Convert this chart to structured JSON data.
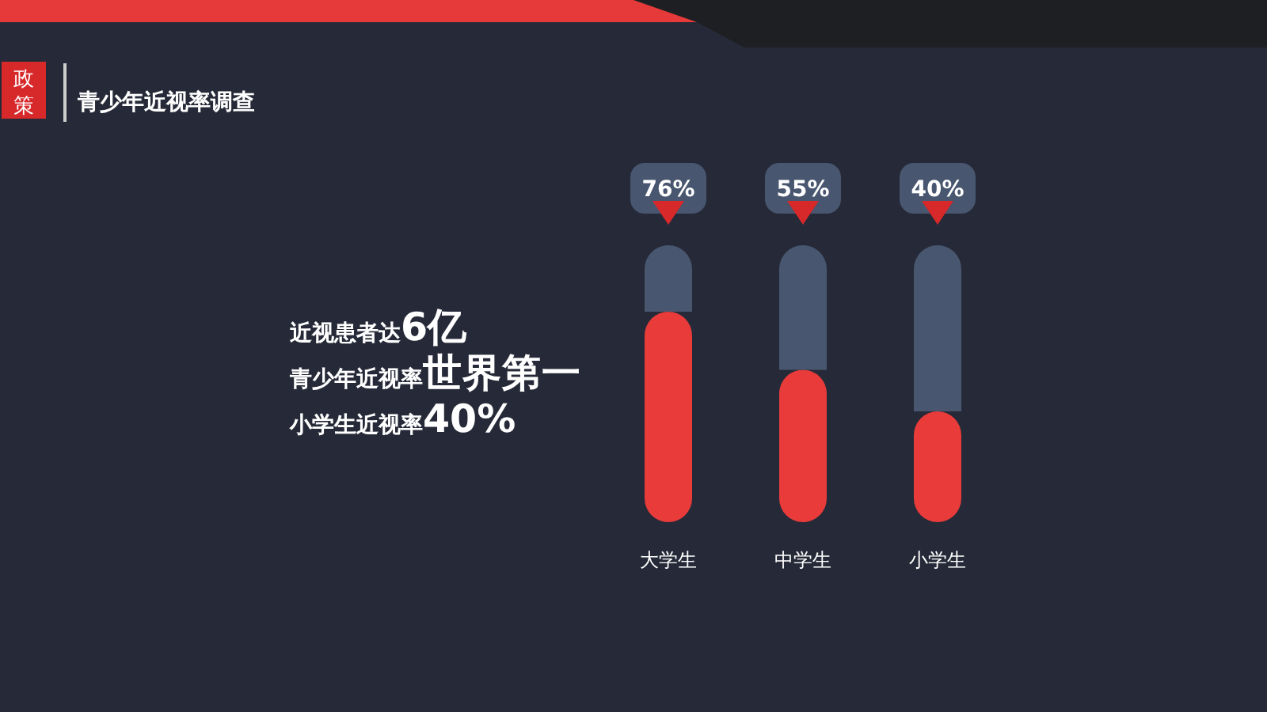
{
  "chart_data": {
    "type": "bar",
    "title": "青少年近视率调查",
    "categories": [
      "大学生",
      "中学生",
      "小学生"
    ],
    "stacked": true,
    "series": [
      {
        "color": "#e83b3a",
        "values": [
          76,
          55,
          40
        ],
        "value_labels": [
          "76%",
          "55%",
          "40%"
        ]
      },
      {
        "color": "#48566f",
        "values": [
          24,
          45,
          60
        ]
      }
    ],
    "ylim": [
      0,
      100
    ],
    "annotations": [
      "政策",
      "近视患者达**6亿**",
      "青少年近视率**世界第一**",
      "小学生近视率**40%**"
    ]
  }
}
